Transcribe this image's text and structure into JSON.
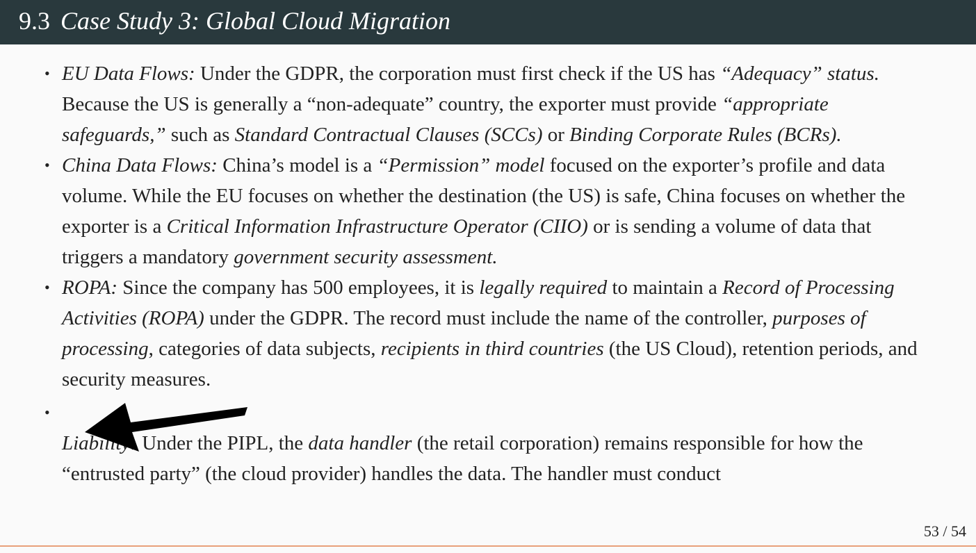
{
  "header": {
    "number": "9.3",
    "title": "Case Study 3: Global Cloud Migration"
  },
  "bullets": [
    {
      "runs": [
        {
          "text": "EU Data Flows:",
          "italic": true
        },
        {
          "text": " Under the GDPR, the corporation must first check if the US has ",
          "italic": false
        },
        {
          "text": "“Adequacy” status.",
          "italic": true
        },
        {
          "text": " Because the US is generally a “non-adequate” country, the exporter must provide ",
          "italic": false
        },
        {
          "text": "“appropriate safeguards,”",
          "italic": true
        },
        {
          "text": " such as ",
          "italic": false
        },
        {
          "text": "Standard Contractual Clauses (SCCs)",
          "italic": true
        },
        {
          "text": " or ",
          "italic": false
        },
        {
          "text": "Binding Corporate Rules (BCRs).",
          "italic": true
        }
      ]
    },
    {
      "runs": [
        {
          "text": "China Data Flows:",
          "italic": true
        },
        {
          "text": " China’s model is a ",
          "italic": false
        },
        {
          "text": "“Permission” model",
          "italic": true
        },
        {
          "text": " focused on the exporter’s profile and data volume. While the EU focuses on whether the destination (the US) is safe, China focuses on whether the exporter is a ",
          "italic": false
        },
        {
          "text": "Critical Information Infrastructure Operator (CIIO)",
          "italic": true
        },
        {
          "text": " or is sending a volume of data that triggers a mandatory ",
          "italic": false
        },
        {
          "text": "government security assessment.",
          "italic": true
        }
      ]
    },
    {
      "runs": [
        {
          "text": "ROPA:",
          "italic": true
        },
        {
          "text": " Since the company has 500 employees, it is ",
          "italic": false
        },
        {
          "text": "legally required",
          "italic": true
        },
        {
          "text": " to maintain a ",
          "italic": false
        },
        {
          "text": "Record of Processing Activities (ROPA)",
          "italic": true
        },
        {
          "text": " under the GDPR. The record must include the name of the controller, ",
          "italic": false
        },
        {
          "text": "purposes of processing",
          "italic": true
        },
        {
          "text": ", categories of data subjects, ",
          "italic": false
        },
        {
          "text": "recipients in third countries",
          "italic": true
        },
        {
          "text": " (the US Cloud), retention periods, and security measures.",
          "italic": false
        }
      ]
    },
    {
      "runs": [
        {
          "text": "Liability:",
          "italic": true
        },
        {
          "text": " Under the PIPL, the ",
          "italic": false
        },
        {
          "text": "data handler",
          "italic": true
        },
        {
          "text": " (the retail corporation) remains responsible for how the “entrusted party” (the cloud provider) handles the data. The handler must conduct",
          "italic": false
        }
      ]
    }
  ],
  "page_number": "53 / 54"
}
